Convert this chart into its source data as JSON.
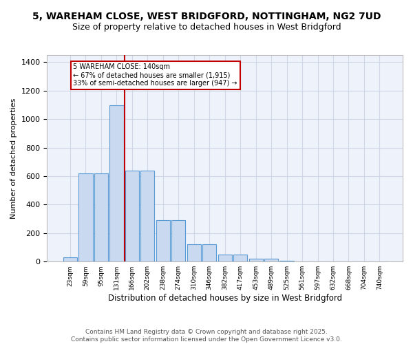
{
  "title_line1": "5, WAREHAM CLOSE, WEST BRIDGFORD, NOTTINGHAM, NG2 7UD",
  "title_line2": "Size of property relative to detached houses in West Bridgford",
  "xlabel": "Distribution of detached houses by size in West Bridgford",
  "ylabel": "Number of detached properties",
  "bar_labels": [
    "23sqm",
    "59sqm",
    "95sqm",
    "131sqm",
    "166sqm",
    "202sqm",
    "238sqm",
    "274sqm",
    "310sqm",
    "346sqm",
    "382sqm",
    "417sqm",
    "453sqm",
    "489sqm",
    "525sqm",
    "561sqm",
    "597sqm",
    "632sqm",
    "668sqm",
    "704sqm",
    "740sqm"
  ],
  "bar_values": [
    30,
    620,
    620,
    1095,
    640,
    640,
    290,
    290,
    120,
    120,
    48,
    48,
    20,
    20,
    5,
    0,
    0,
    0,
    0,
    0,
    0
  ],
  "bar_color": "#c9d9f0",
  "bar_edge_color": "#5b9bd5",
  "vline_x": 3.5,
  "vline_color": "#c00000",
  "annotation_text": "5 WAREHAM CLOSE: 140sqm\n← 67% of detached houses are smaller (1,915)\n33% of semi-detached houses are larger (947) →",
  "annotation_box_color": "#c00000",
  "ylim": [
    0,
    1450
  ],
  "yticks": [
    0,
    200,
    400,
    600,
    800,
    1000,
    1200,
    1400
  ],
  "grid_color": "#d0d8e8",
  "bg_color": "#eef2fa",
  "footer": "Contains HM Land Registry data © Crown copyright and database right 2025.\nContains public sector information licensed under the Open Government Licence v3.0.",
  "title_fontsize": 10,
  "subtitle_fontsize": 9,
  "footer_fontsize": 6.5
}
